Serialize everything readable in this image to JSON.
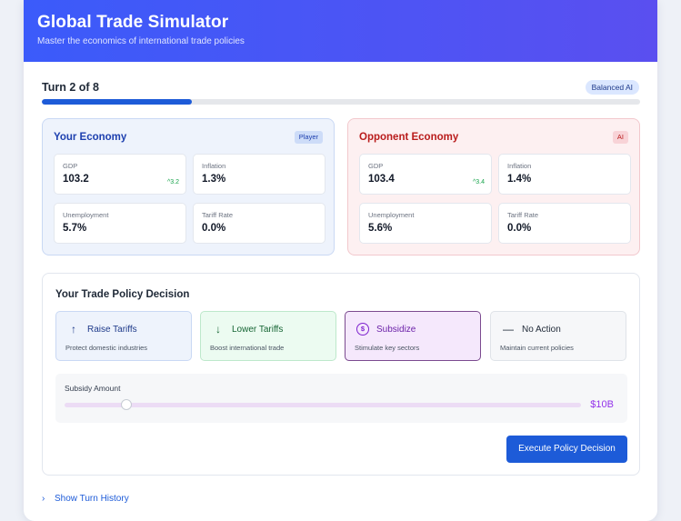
{
  "header": {
    "title": "Global Trade Simulator",
    "subtitle": "Master the economics of international trade policies"
  },
  "turn": {
    "label": "Turn 2 of 8",
    "current": 2,
    "total": 8,
    "progress_fraction": 0.25,
    "ai_badge": "Balanced AI"
  },
  "player_economy": {
    "title": "Your Economy",
    "tag": "Player",
    "metrics": [
      {
        "label": "GDP",
        "value": "103.2",
        "delta": "3.2"
      },
      {
        "label": "Inflation",
        "value": "1.3%"
      },
      {
        "label": "Unemployment",
        "value": "5.7%"
      },
      {
        "label": "Tariff Rate",
        "value": "0.0%"
      }
    ]
  },
  "opponent_economy": {
    "title": "Opponent Economy",
    "tag": "AI",
    "metrics": [
      {
        "label": "GDP",
        "value": "103.4",
        "delta": "3.4"
      },
      {
        "label": "Inflation",
        "value": "1.4%"
      },
      {
        "label": "Unemployment",
        "value": "5.6%"
      },
      {
        "label": "Tariff Rate",
        "value": "0.0%"
      }
    ]
  },
  "decision": {
    "title": "Your Trade Policy Decision",
    "options": [
      {
        "label": "Raise Tariffs",
        "desc": "Protect domestic industries",
        "icon": "arrow-up-icon",
        "glyph": "↑"
      },
      {
        "label": "Lower Tariffs",
        "desc": "Boost international trade",
        "icon": "arrow-down-icon",
        "glyph": "↓"
      },
      {
        "label": "Subsidize",
        "desc": "Stimulate key sectors",
        "icon": "dollar-icon",
        "glyph": "$",
        "selected": true
      },
      {
        "label": "No Action",
        "desc": "Maintain current policies",
        "icon": "minus-icon",
        "glyph": "—"
      }
    ],
    "slider": {
      "label": "Subsidy Amount",
      "value_text": "$10B",
      "fraction": 0.12
    },
    "execute_label": "Execute Policy Decision"
  },
  "history": {
    "label": "Show Turn History",
    "icon": "chevron-right-icon"
  },
  "colors": {
    "accent": "#1d5bd8",
    "header_start": "#3b5bfa",
    "header_end": "#5a4ff0",
    "positive": "#16a34a",
    "subsidy": "#9333ea"
  }
}
